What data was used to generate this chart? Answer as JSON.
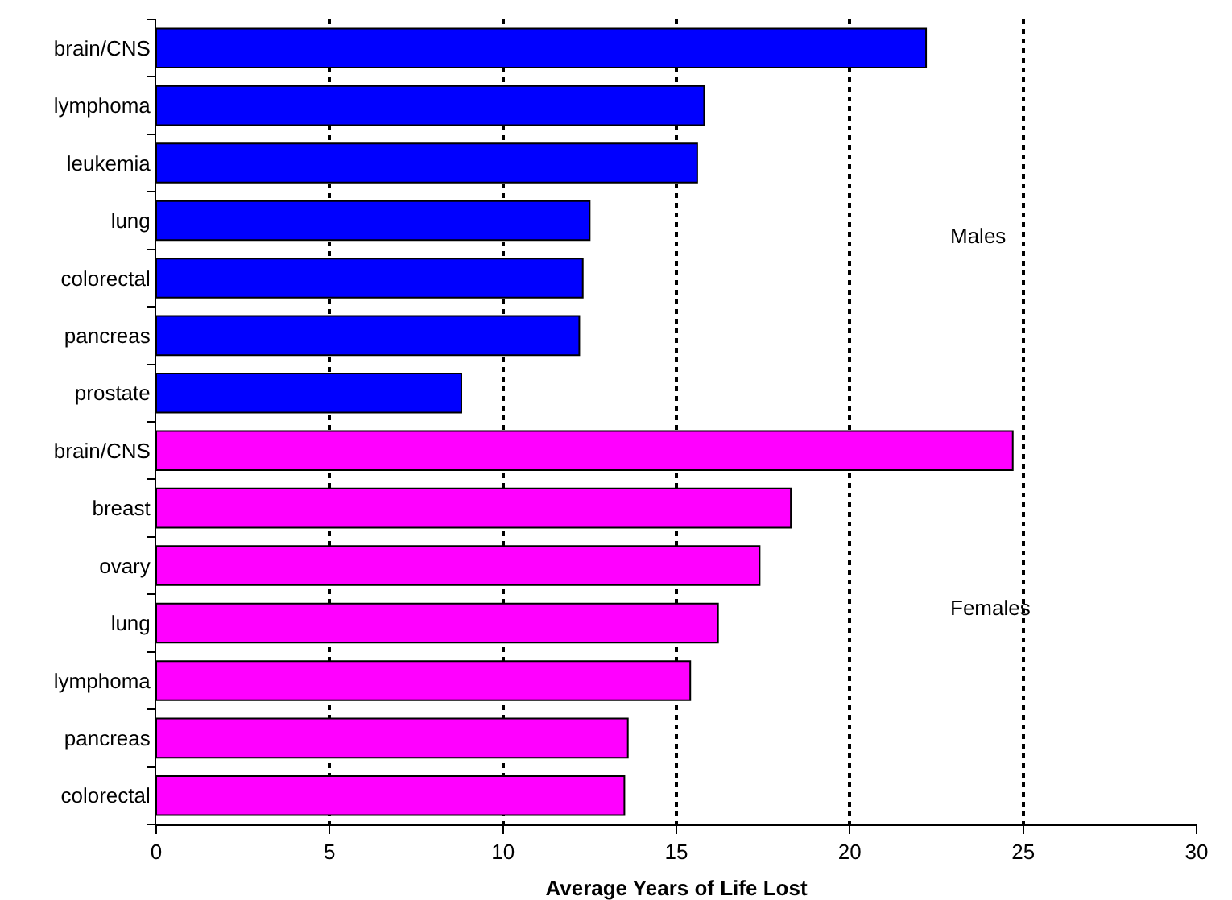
{
  "chart_data": {
    "type": "bar",
    "orientation": "horizontal",
    "xlabel": "Average Years of Life Lost",
    "categories": [
      "brain/CNS",
      "lymphoma",
      "leukemia",
      "lung",
      "colorectal",
      "pancreas",
      "prostate",
      "brain/CNS",
      "breast",
      "ovary",
      "lung",
      "lymphoma",
      "pancreas",
      "colorectal"
    ],
    "values": [
      22.2,
      15.8,
      15.6,
      12.5,
      12.3,
      12.2,
      8.8,
      24.7,
      18.3,
      17.4,
      16.2,
      15.4,
      13.6,
      13.5
    ],
    "colors": [
      "#0000ff",
      "#0000ff",
      "#0000ff",
      "#0000ff",
      "#0000ff",
      "#0000ff",
      "#0000ff",
      "#ff00ff",
      "#ff00ff",
      "#ff00ff",
      "#ff00ff",
      "#ff00ff",
      "#ff00ff",
      "#ff00ff"
    ],
    "xlim": [
      0,
      30
    ],
    "xticks": [
      0,
      5,
      10,
      15,
      20,
      25,
      30
    ],
    "grid": "x",
    "legend": false,
    "annotations": [
      "Males",
      "Females"
    ]
  }
}
